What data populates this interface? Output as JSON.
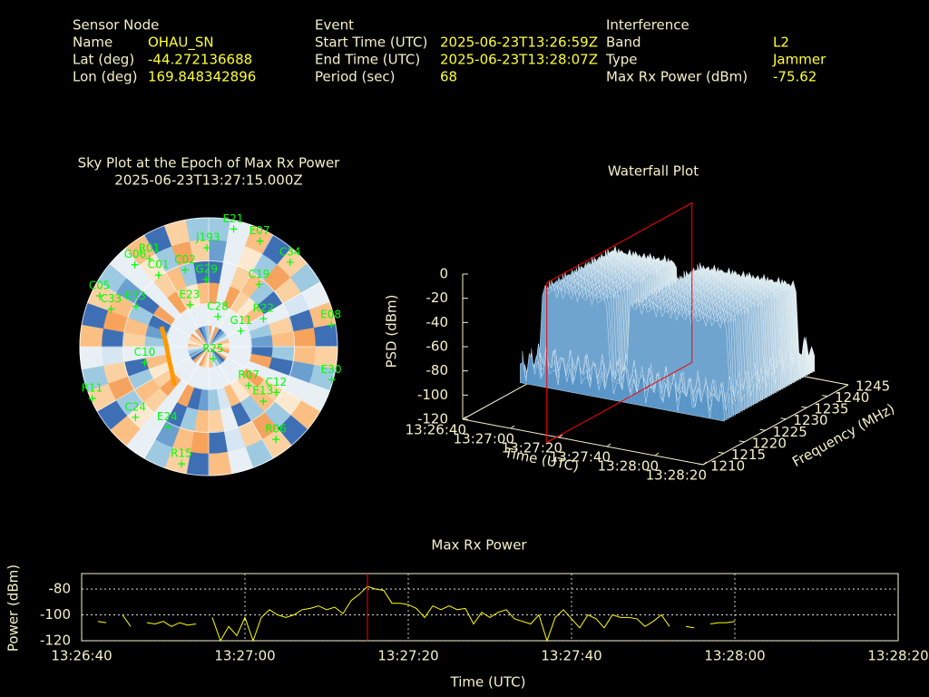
{
  "info": {
    "sensor": {
      "heading": "Sensor Node",
      "rows": [
        [
          "Name",
          "OHAU_SN"
        ],
        [
          "Lat (deg)",
          "-44.272136688"
        ],
        [
          "Lon (deg)",
          "169.848342896"
        ]
      ]
    },
    "event": {
      "heading": "Event",
      "rows": [
        [
          "Start Time (UTC)",
          "2025-06-23T13:26:59Z"
        ],
        [
          "End Time (UTC)",
          "2025-06-23T13:28:07Z"
        ],
        [
          "Period (sec)",
          "68"
        ]
      ]
    },
    "interference": {
      "heading": "Interference",
      "rows": [
        [
          "Band",
          "L2"
        ],
        [
          "Type",
          "Jammer"
        ],
        [
          "Max Rx Power (dBm)",
          "-75.62"
        ]
      ]
    }
  },
  "chart_data": [
    {
      "type": "polar",
      "title": "Sky Plot at the Epoch of Max Rx Power",
      "subtitle": "2025-06-23T13:27:15.000Z",
      "color": "#00ff00",
      "points": [
        {
          "label": "E21",
          "azimuth": 12,
          "elevation": 6
        },
        {
          "label": "E07",
          "azimuth": 26,
          "elevation": 8
        },
        {
          "label": "J193",
          "azimuth": 359,
          "elevation": 21
        },
        {
          "label": "C34",
          "azimuth": 44,
          "elevation": 8
        },
        {
          "label": "R01",
          "azimuth": 326,
          "elevation": 16
        },
        {
          "label": "G06",
          "azimuth": 318,
          "elevation": 13
        },
        {
          "label": "C01",
          "azimuth": 325,
          "elevation": 29
        },
        {
          "label": "C02",
          "azimuth": 343,
          "elevation": 34
        },
        {
          "label": "G29",
          "azimuth": 358,
          "elevation": 43
        },
        {
          "label": "C19",
          "azimuth": 39,
          "elevation": 34
        },
        {
          "label": "C05",
          "azimuth": 295,
          "elevation": 6
        },
        {
          "label": "C33",
          "azimuth": 291,
          "elevation": 17
        },
        {
          "label": "E33",
          "azimuth": 299,
          "elevation": 32
        },
        {
          "label": "E23",
          "azimuth": 336,
          "elevation": 58
        },
        {
          "label": "C28",
          "azimuth": 17,
          "elevation": 68
        },
        {
          "label": "R22",
          "azimuth": 63,
          "elevation": 47
        },
        {
          "label": "E08",
          "azimuth": 80,
          "elevation": 3
        },
        {
          "label": "G11",
          "azimuth": 64,
          "elevation": 65
        },
        {
          "label": "C10",
          "azimuth": 256,
          "elevation": 44
        },
        {
          "label": "R25",
          "azimuth": 159,
          "elevation": 81
        },
        {
          "label": "R07",
          "azimuth": 134,
          "elevation": 51
        },
        {
          "label": "E13",
          "azimuth": 135,
          "elevation": 36
        },
        {
          "label": "C12",
          "azimuth": 124,
          "elevation": 33
        },
        {
          "label": "E30",
          "azimuth": 105,
          "elevation": 1
        },
        {
          "label": "R11",
          "azimuth": 246,
          "elevation": 1
        },
        {
          "label": "C24",
          "azimuth": 226,
          "elevation": 19
        },
        {
          "label": "E24",
          "azimuth": 207,
          "elevation": 27
        },
        {
          "label": "R15",
          "azimuth": 193,
          "elevation": 6
        },
        {
          "label": "R06",
          "azimuth": 144,
          "elevation": 10
        }
      ]
    },
    {
      "type": "surface",
      "title": "Waterfall Plot",
      "xlabel": "Time (UTC)",
      "ylabel": "Frequency (MHz)",
      "zlabel": "PSD (dBm)",
      "xlim": [
        "13:26:40",
        "13:28:20"
      ],
      "xticks": [
        "13:26:40",
        "13:27:00",
        "13:27:20",
        "13:27:40",
        "13:28:00",
        "13:28:20"
      ],
      "ylim": [
        1210,
        1245
      ],
      "yticks": [
        1210,
        1215,
        1220,
        1225,
        1230,
        1235,
        1240,
        1245
      ],
      "zlim": [
        -120,
        0
      ],
      "zticks": [
        0,
        -20,
        -40,
        -60,
        -80,
        -100,
        -120
      ]
    },
    {
      "type": "line",
      "title": "Max Rx Power",
      "xlabel": "Time (UTC)",
      "ylabel": "Power (dBm)",
      "color": "#ffff00",
      "marker_x": "13:27:15",
      "marker_color": "#ff0000",
      "grid": true,
      "xlim": [
        "13:26:40",
        "13:28:20"
      ],
      "xticks": [
        "13:26:40",
        "13:27:00",
        "13:27:20",
        "13:27:40",
        "13:28:00",
        "13:28:20"
      ],
      "ylim": [
        -120,
        -68
      ],
      "yticks": [
        -80,
        -100,
        -120
      ],
      "x": [
        "13:26:40",
        "13:26:41",
        "13:26:42",
        "13:26:43",
        "13:26:44",
        "13:26:45",
        "13:26:46",
        "13:26:47",
        "13:26:48",
        "13:26:49",
        "13:26:50",
        "13:26:51",
        "13:26:52",
        "13:26:53",
        "13:26:54",
        "13:26:55",
        "13:26:56",
        "13:26:57",
        "13:26:58",
        "13:26:59",
        "13:27:00",
        "13:27:01",
        "13:27:02",
        "13:27:03",
        "13:27:04",
        "13:27:05",
        "13:27:06",
        "13:27:07",
        "13:27:08",
        "13:27:09",
        "13:27:10",
        "13:27:11",
        "13:27:12",
        "13:27:13",
        "13:27:14",
        "13:27:15",
        "13:27:16",
        "13:27:17",
        "13:27:18",
        "13:27:19",
        "13:27:20",
        "13:27:21",
        "13:27:22",
        "13:27:23",
        "13:27:24",
        "13:27:25",
        "13:27:26",
        "13:27:27",
        "13:27:28",
        "13:27:29",
        "13:27:30",
        "13:27:31",
        "13:27:32",
        "13:27:33",
        "13:27:34",
        "13:27:35",
        "13:27:36",
        "13:27:37",
        "13:27:38",
        "13:27:39",
        "13:27:40",
        "13:27:41",
        "13:27:42",
        "13:27:43",
        "13:27:44",
        "13:27:45",
        "13:27:46",
        "13:27:47",
        "13:27:48",
        "13:27:49",
        "13:27:50",
        "13:27:51",
        "13:27:52",
        "13:27:53",
        "13:27:54",
        "13:27:55",
        "13:27:56",
        "13:27:57",
        "13:27:58",
        "13:27:59",
        "13:28:00"
      ],
      "values": [
        null,
        null,
        -105,
        -106,
        null,
        -100,
        -109,
        null,
        -106,
        -107,
        -105,
        -109,
        -106,
        -108,
        -107,
        null,
        -102,
        -120,
        -109,
        -116,
        -102,
        -120,
        -102,
        -96,
        -100,
        -102,
        -100,
        -96,
        -95,
        -93,
        -96,
        -94,
        -99,
        -89,
        -84,
        -78,
        -80,
        -81,
        -91,
        -91,
        -92,
        -95,
        -102,
        -93,
        -96,
        -93,
        -96,
        -95,
        -107,
        -98,
        -102,
        -98,
        -96,
        -103,
        -105,
        -107,
        -100,
        -120,
        -102,
        -96,
        -103,
        -110,
        -100,
        -103,
        -110,
        -100,
        -102,
        -102,
        -103,
        -109,
        -105,
        -100,
        -109,
        null,
        -109,
        -110,
        null,
        -107,
        -106,
        -106,
        -105
      ]
    }
  ]
}
